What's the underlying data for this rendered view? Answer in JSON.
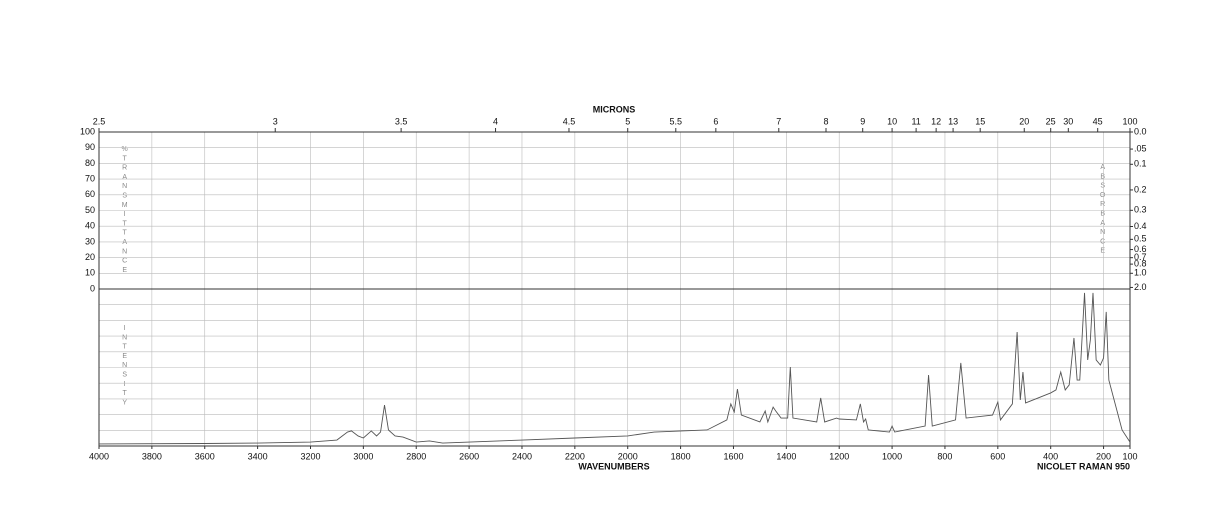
{
  "chart_data": {
    "type": "line",
    "title": "MICRONS",
    "xlabel": "WAVENUMBERS",
    "annotation": "NICOLET RAMAN 950",
    "y_label": "%TRANSMITTANCE",
    "y2_label": "ABSORBANCE",
    "lower_label": "INTENSITY",
    "color": "#555555",
    "xlim": [
      4000,
      100
    ],
    "xticks": [
      4000,
      3800,
      3600,
      3400,
      3200,
      3000,
      2800,
      2600,
      2400,
      2200,
      2000,
      1800,
      1600,
      1400,
      1200,
      1000,
      800,
      600,
      400,
      200,
      100
    ],
    "micron_ticks": [
      2.5,
      3,
      3.5,
      4,
      4.5,
      5,
      5.5,
      6,
      7,
      8,
      9,
      10,
      11,
      12,
      13,
      15,
      20,
      25,
      30,
      45,
      100
    ],
    "ylim": [
      0,
      100
    ],
    "yticks": [
      0,
      10,
      20,
      30,
      40,
      50,
      60,
      70,
      80,
      90,
      100
    ],
    "y2_scale": "absorbance",
    "y2ticks": [
      {
        "value": 0,
        "label": "0.0"
      },
      {
        "value": 0.05,
        "label": ".05"
      },
      0.1,
      0.2,
      0.3,
      0.4,
      0.5,
      0.6,
      0.7,
      0.8,
      {
        "value": 1,
        "label": "1.0"
      },
      {
        "value": 2,
        "label": "2.0"
      }
    ],
    "grid": true,
    "x": [
      4000,
      3600,
      3400,
      3200,
      3100,
      3060,
      3045,
      3020,
      3000,
      2970,
      2950,
      2935,
      2920,
      2905,
      2880,
      2850,
      2800,
      2750,
      2700,
      2400,
      2200,
      2000,
      1900,
      1700,
      1625,
      1610,
      1597,
      1585,
      1570,
      1500,
      1480,
      1470,
      1450,
      1440,
      1420,
      1395,
      1385,
      1375,
      1285,
      1270,
      1255,
      1210,
      1200,
      1135,
      1120,
      1108,
      1100,
      1090,
      1010,
      1000,
      990,
      950,
      875,
      862,
      848,
      760,
      740,
      720,
      620,
      600,
      590,
      545,
      527,
      515,
      505,
      495,
      400,
      380,
      362,
      345,
      330,
      312,
      300,
      290,
      272,
      260,
      250,
      240,
      228,
      212,
      200,
      190,
      180,
      150,
      130,
      100
    ],
    "values": [
      1.3,
      1.6,
      1.9,
      2.5,
      3.8,
      8.9,
      9.6,
      6.4,
      5.1,
      9.6,
      6.4,
      8.9,
      26.1,
      10.2,
      6.4,
      5.7,
      2.5,
      3.2,
      1.9,
      3.8,
      5.1,
      6.4,
      8.9,
      10.2,
      16.6,
      26.8,
      21.7,
      36.3,
      19.7,
      15.3,
      22.3,
      15.3,
      24.8,
      22.3,
      17.8,
      17.8,
      50.3,
      17.8,
      15.3,
      30.6,
      15.3,
      17.8,
      17.2,
      16.6,
      26.8,
      15.3,
      17.2,
      10.2,
      8.9,
      12.7,
      8.9,
      10.2,
      12.7,
      45.2,
      12.7,
      16.6,
      52.9,
      17.8,
      19.7,
      28,
      16.6,
      26.8,
      72.6,
      29.3,
      47.1,
      27.4,
      33.8,
      35.7,
      47.1,
      35.7,
      38.9,
      68.8,
      42,
      42,
      97.5,
      54.8,
      67.5,
      97.5,
      54.8,
      51.6,
      56.1,
      85.4,
      42,
      22.9,
      10.2,
      2.5
    ]
  }
}
